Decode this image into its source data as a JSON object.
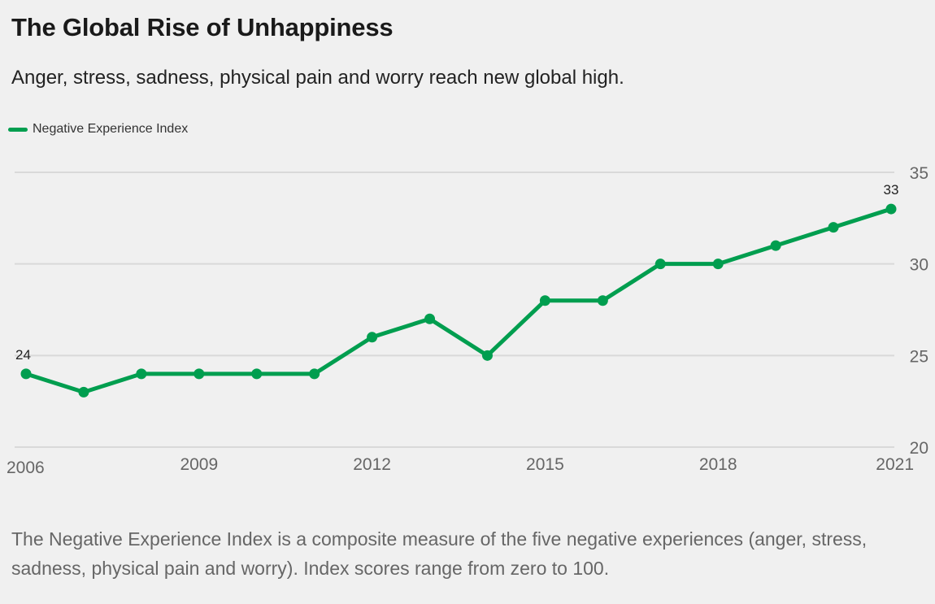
{
  "title": "The Global Rise of Unhappiness",
  "subtitle": "Anger, stress, sadness, physical pain and worry reach new global high.",
  "footnote": "The Negative Experience Index is a composite measure of the five negative experiences (anger, stress, sadness, physical pain and worry). Index scores range from zero to 100.",
  "colors": {
    "series": "#009e4f",
    "grid": "#d9d9d9",
    "tick_text": "#666666",
    "label_text": "#222222"
  },
  "chart_data": {
    "type": "line",
    "title": "",
    "xlabel": "",
    "ylabel": "",
    "x": [
      2006,
      2007,
      2008,
      2009,
      2010,
      2011,
      2012,
      2013,
      2014,
      2015,
      2016,
      2017,
      2018,
      2019,
      2020,
      2021
    ],
    "series": [
      {
        "name": "Negative Experience Index",
        "values": [
          24,
          23,
          24,
          24,
          24,
          24,
          26,
          27,
          25,
          28,
          28,
          30,
          30,
          31,
          32,
          33
        ]
      }
    ],
    "xlim": [
      2006,
      2021
    ],
    "ylim": [
      20,
      35
    ],
    "x_ticks": [
      "2006",
      "2009",
      "2012",
      "2015",
      "2018",
      "2021"
    ],
    "y_ticks": [
      "20",
      "25",
      "30",
      "35"
    ],
    "data_labels": [
      {
        "x": 2006,
        "text": "24"
      },
      {
        "x": 2021,
        "text": "33"
      }
    ],
    "grid": true,
    "y_axis_side": "right",
    "legend_position": "top-left"
  }
}
